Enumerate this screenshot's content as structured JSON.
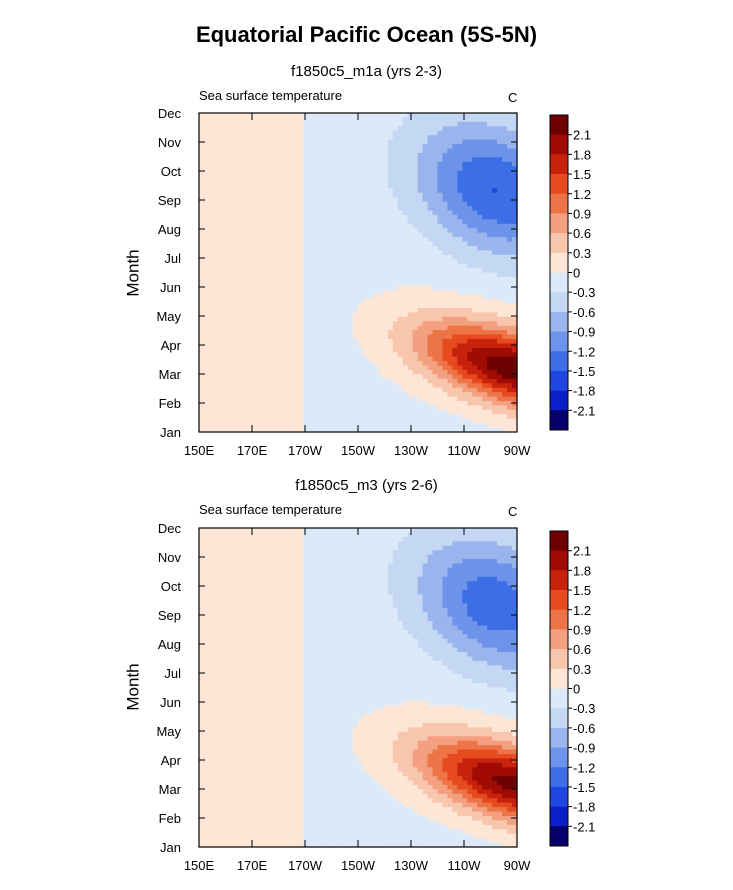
{
  "title": "Equatorial Pacific Ocean (5S-5N)",
  "colors": {
    "levels": [
      "#08006a",
      "#0a1fc8",
      "#1e46de",
      "#3c6ee6",
      "#6d93ea",
      "#9ab5ee",
      "#c4d8f4",
      "#dce9f8",
      "#fde6d5",
      "#f8c6ad",
      "#f2a07f",
      "#ec7447",
      "#e64a1e",
      "#c8220c",
      "#a00c04",
      "#6d0000"
    ]
  },
  "chart_data": [
    {
      "type": "heatmap",
      "title": "f1850c5_m1a (yrs 2-3)",
      "left_string": "Sea surface temperature",
      "right_string": "C",
      "xlabel": "",
      "ylabel": "Month",
      "x_ticks": [
        "150E",
        "170E",
        "170W",
        "150W",
        "130W",
        "110W",
        "90W"
      ],
      "x_range": [
        "150E",
        "90W"
      ],
      "y_ticks": [
        "Jan",
        "Feb",
        "Mar",
        "Apr",
        "May",
        "Jun",
        "Jul",
        "Aug",
        "Sep",
        "Oct",
        "Nov",
        "Dec"
      ],
      "colorbar_labels": [
        "2.1",
        "1.8",
        "1.5",
        "1.2",
        "0.9",
        "0.6",
        "0.3",
        "0",
        "-0.3",
        "-0.6",
        "-0.9",
        "-1.2",
        "-1.5",
        "-1.8",
        "-2.1"
      ],
      "levels": [
        -2.1,
        -1.8,
        -1.5,
        -1.2,
        -0.9,
        -0.6,
        -0.3,
        0,
        0.3,
        0.6,
        0.9,
        1.2,
        1.5,
        1.8,
        2.1
      ],
      "warm_peak": {
        "lon_w": 95,
        "month": 3.2,
        "value": 2.3
      },
      "cold_peak": {
        "lon_w": 97,
        "month": 9.4,
        "value": -1.5
      }
    },
    {
      "type": "heatmap",
      "title": "f1850c5_m3 (yrs 2-6)",
      "left_string": "Sea surface temperature",
      "right_string": "C",
      "xlabel": "",
      "ylabel": "Month",
      "x_ticks": [
        "150E",
        "170E",
        "170W",
        "150W",
        "130W",
        "110W",
        "90W"
      ],
      "x_range": [
        "150E",
        "90W"
      ],
      "y_ticks": [
        "Jan",
        "Feb",
        "Mar",
        "Apr",
        "May",
        "Jun",
        "Jul",
        "Aug",
        "Sep",
        "Oct",
        "Nov",
        "Dec"
      ],
      "colorbar_labels": [
        "2.1",
        "1.8",
        "1.5",
        "1.2",
        "0.9",
        "0.6",
        "0.3",
        "0",
        "-0.3",
        "-0.6",
        "-0.9",
        "-1.2",
        "-1.5",
        "-1.8",
        "-2.1"
      ],
      "levels": [
        -2.1,
        -1.8,
        -1.5,
        -1.2,
        -0.9,
        -0.6,
        -0.3,
        0,
        0.3,
        0.6,
        0.9,
        1.2,
        1.5,
        1.8,
        2.1
      ],
      "warm_peak": {
        "lon_w": 95,
        "month": 3.3,
        "value": 2.2
      },
      "cold_peak": {
        "lon_w": 97,
        "month": 9.0,
        "value": -1.4
      }
    }
  ]
}
